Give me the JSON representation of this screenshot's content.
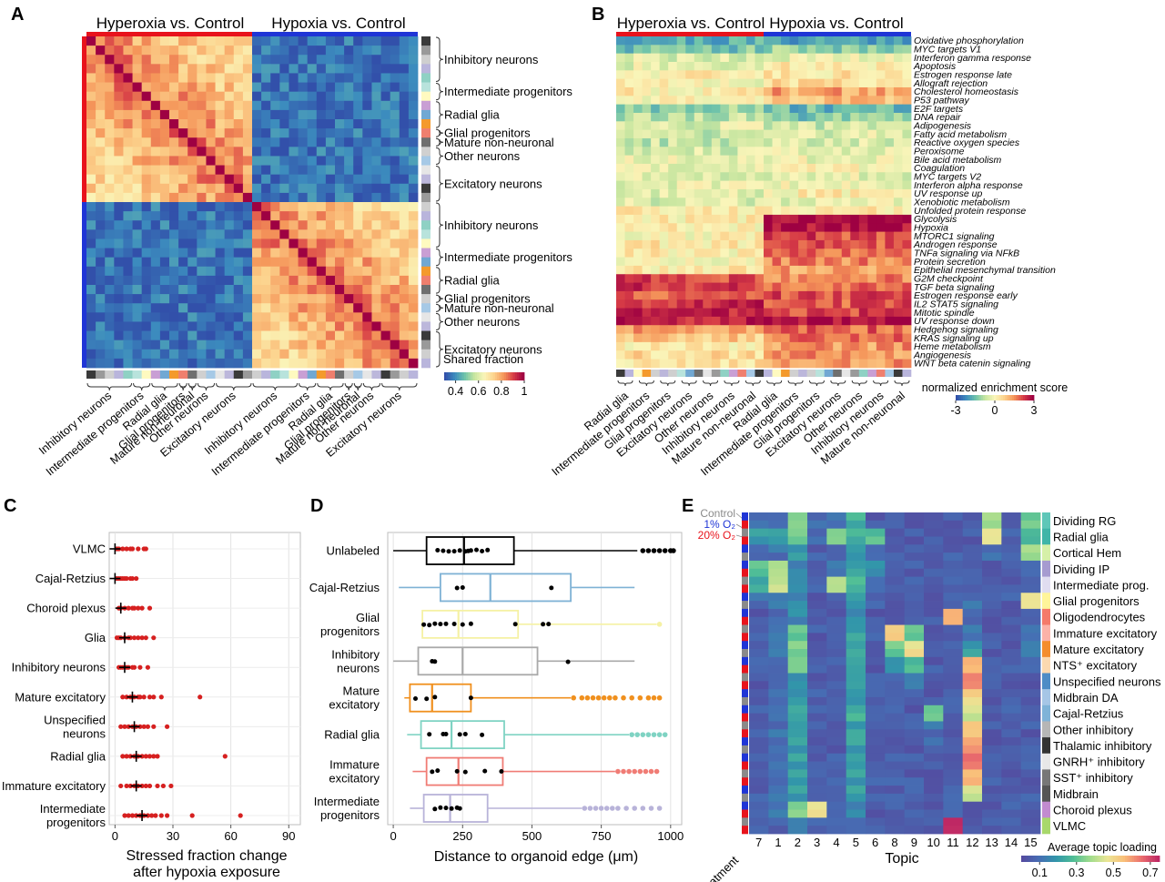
{
  "panels": {
    "A": {
      "letter": "A",
      "group_titles": [
        "Hyperoxia vs. Control",
        "Hypoxia vs. Control"
      ],
      "bracket_labels": [
        "Inhibitory neurons",
        "Intermediate progenitors",
        "Radial glia",
        "Glial progenitors",
        "Mature non-neuronal",
        "Other neurons",
        "Excitatory neurons",
        "Inhibitory neurons",
        "Intermediate progenitors",
        "Radial glia",
        "Glial progenitors",
        "Mature non-neuronal",
        "Other neurons",
        "Excitatory neurons"
      ],
      "bottom_labels": [
        "Inhibitory neurons",
        "Intermediate progenitors",
        "Radial glia",
        "Glial progenitors",
        "Mature non-neuronal",
        "Other neurons",
        "Excitatory neurons",
        "Inhibitory neurons",
        "Intermediate progenitors",
        "Radial glia",
        "Glial progenitors",
        "Mature non-neuronal",
        "Other neurons",
        "Excitatory neurons"
      ],
      "colorbar_title": "Shared fraction",
      "colorbar_ticks": [
        "0.4",
        "0.6",
        "0.8",
        "1"
      ]
    },
    "B": {
      "letter": "B",
      "group_titles": [
        "Hyperoxia vs. Control",
        "Hypoxia vs. Control"
      ],
      "pathways": [
        "Oxidative phosphorylation",
        "MYC targets V1",
        "Interferon gamma response",
        "Apoptosis",
        "Estrogen response late",
        "Allograft rejection",
        "Cholesterol homeostasis",
        "P53 pathway",
        "E2F targets",
        "DNA repair",
        "Adipogenesis",
        "Fatty acid metabolism",
        "Reactive oxygen species",
        "Peroxisome",
        "Bile acid metabolism",
        "Coagulation",
        "MYC targets V2",
        "Interferon alpha response",
        "UV response up",
        "Xenobiotic metabolism",
        "Unfolded protein response",
        "Glycolysis",
        "Hypoxia",
        "MTORC1 signaling",
        "Androgen response",
        "TNFa signaling via NFkB",
        "Protein secretion",
        "Epithelial mesenchymal transition",
        "G2M checkpoint",
        "TGF beta signaling",
        "Estrogen response early",
        "IL2 STAT5 signaling",
        "Mitotic spindle",
        "UV response down",
        "Hedgehog signaling",
        "KRAS signaling up",
        "Heme metabolism",
        "Angiogenesis",
        "WNT beta catenin signaling"
      ],
      "bottom_labels": [
        "Radial glia",
        "Intermediate progenitors",
        "Glial progenitors",
        "Excitatory neurons",
        "Other neurons",
        "Inhibitory neurons",
        "Mature non-neuronal",
        "Radial glia",
        "Intermediate progenitors",
        "Glial progenitors",
        "Excitatory neurons",
        "Other neurons",
        "Inhibitory neurons",
        "Mature non-neuronal"
      ],
      "colorbar_title": "normalized enrichment score",
      "colorbar_ticks": [
        "-3",
        "0",
        "3"
      ]
    },
    "C": {
      "letter": "C",
      "xlabel_line1": "Stressed fraction change",
      "xlabel_line2": "after hypoxia exposure",
      "xticks": [
        "0",
        "30",
        "60",
        "90"
      ]
    },
    "D": {
      "letter": "D",
      "xlabel": "Distance to organoid edge (μm)",
      "xticks": [
        "0",
        "250",
        "500",
        "750",
        "1000"
      ]
    },
    "E": {
      "letter": "E",
      "treatment_legend": [
        "Control",
        "1% O₂",
        "20% O₂"
      ],
      "row_label": "treatment",
      "xlabel": "Topic",
      "topics": [
        "7",
        "1",
        "2",
        "3",
        "4",
        "5",
        "6",
        "8",
        "9",
        "10",
        "11",
        "12",
        "13",
        "14",
        "15"
      ],
      "clusters": [
        "Dividing RG",
        "Radial glia",
        "Cortical Hem",
        "Dividing IP",
        "Intermediate prog.",
        "Glial progenitors",
        "Oligodendrocytes",
        "Immature excitatory",
        "Mature excitatory",
        "NTS⁺ excitatory",
        "Unspecified neurons",
        "Midbrain DA",
        "Cajal-Retzius",
        "Other inhibitory",
        "Thalamic inhibitory",
        "GNRH⁺ inhibitory",
        "SST⁺ inhibitory",
        "Midbrain",
        "Choroid plexus",
        "VLMC"
      ],
      "colorbar_title": "Average topic loading",
      "colorbar_ticks": [
        "0.1",
        "0.3",
        "0.5",
        "0.7"
      ]
    }
  },
  "chart_data": [
    {
      "type": "heatmap",
      "panel": "A",
      "title": "",
      "groups": [
        "Hyperoxia vs. Control",
        "Hypoxia vs. Control"
      ],
      "row_blocks": [
        "Inhibitory neurons",
        "Intermediate progenitors",
        "Radial glia",
        "Glial progenitors",
        "Mature non-neuronal",
        "Other neurons",
        "Excitatory neurons",
        "Inhibitory neurons",
        "Intermediate progenitors",
        "Radial glia",
        "Glial progenitors",
        "Mature non-neuronal",
        "Other neurons",
        "Excitatory neurons"
      ],
      "value_label": "Shared fraction",
      "range": [
        0.3,
        1.0
      ],
      "within_group_mean": 0.72,
      "between_group_mean": 0.35,
      "diagonal": 1.0
    },
    {
      "type": "heatmap",
      "panel": "B",
      "value_label": "normalized enrichment score",
      "range": [
        -3,
        3
      ],
      "rows": [
        "Oxidative phosphorylation",
        "MYC targets V1",
        "Interferon gamma response",
        "Apoptosis",
        "Estrogen response late",
        "Allograft rejection",
        "Cholesterol homeostasis",
        "P53 pathway",
        "E2F targets",
        "DNA repair",
        "Adipogenesis",
        "Fatty acid metabolism",
        "Reactive oxygen species",
        "Peroxisome",
        "Bile acid metabolism",
        "Coagulation",
        "MYC targets V2",
        "Interferon alpha response",
        "UV response up",
        "Xenobiotic metabolism",
        "Unfolded protein response",
        "Glycolysis",
        "Hypoxia",
        "MTORC1 signaling",
        "Androgen response",
        "TNFa signaling via NFkB",
        "Protein secretion",
        "Epithelial mesenchymal transition",
        "G2M checkpoint",
        "TGF beta signaling",
        "Estrogen response early",
        "IL2 STAT5 signaling",
        "Mitotic spindle",
        "UV response down",
        "Hedgehog signaling",
        "KRAS signaling up",
        "Heme metabolism",
        "Angiogenesis",
        "WNT beta catenin signaling"
      ],
      "hyperoxia_mean": [
        -1.8,
        -1.4,
        -0.4,
        -0.3,
        0.2,
        0,
        0.2,
        0,
        -1.2,
        -0.8,
        -0.4,
        -0.6,
        -0.7,
        -0.5,
        -0.2,
        -0.2,
        -0.4,
        -0.3,
        -0.4,
        -0.5,
        0.2,
        0.2,
        0.2,
        0.1,
        0.3,
        0.2,
        0,
        0.2,
        2.2,
        2.3,
        2.0,
        2.4,
        2.6,
        2.6,
        1.4,
        0.8,
        0.3,
        0.5,
        0.4
      ],
      "hypoxia_mean": [
        -1.9,
        -1.2,
        -0.3,
        0.3,
        0.4,
        0.5,
        1.3,
        0.9,
        -1.6,
        -1.4,
        -0.6,
        -0.4,
        -0.4,
        -0.3,
        -0.2,
        0.1,
        -0.3,
        -0.2,
        0.2,
        -0.3,
        0.3,
        2.8,
        2.9,
        2.2,
        2.0,
        1.9,
        1.6,
        1.4,
        1.6,
        2.0,
        2.1,
        2.0,
        2.2,
        2.9,
        1.9,
        1.8,
        1.4,
        1.5,
        1.4
      ]
    },
    {
      "type": "scatter",
      "panel": "C",
      "categories": [
        "VLMC",
        "Cajal-Retzius",
        "Choroid plexus",
        "Glia",
        "Inhibitory neurons",
        "Mature excitatory",
        "Unspecified neurons",
        "Radial glia",
        "Immature excitatory",
        "Intermediate progenitors"
      ],
      "xlabel": "Stressed fraction change after hypoxia exposure",
      "xlim": [
        -3,
        96
      ],
      "medians": [
        0,
        0,
        3,
        5,
        5,
        9,
        10,
        11,
        11,
        14
      ],
      "points": [
        [
          1,
          2,
          4,
          6,
          8,
          9,
          12,
          15,
          16
        ],
        [
          1,
          2,
          3,
          4,
          5,
          6,
          8,
          9,
          11
        ],
        [
          2,
          3,
          5,
          7,
          9,
          10,
          12,
          14,
          18
        ],
        [
          1,
          2,
          3,
          5,
          7,
          8,
          10,
          12,
          14,
          16,
          20
        ],
        [
          2,
          3,
          4,
          6,
          7,
          9,
          10,
          13,
          17
        ],
        [
          4,
          6,
          8,
          10,
          12,
          13,
          15,
          18,
          20,
          24,
          44
        ],
        [
          3,
          5,
          7,
          9,
          11,
          13,
          15,
          17,
          20,
          27
        ],
        [
          4,
          6,
          8,
          10,
          12,
          14,
          16,
          18,
          20,
          22,
          57
        ],
        [
          3,
          6,
          8,
          10,
          12,
          14,
          16,
          18,
          22,
          25,
          29
        ],
        [
          5,
          7,
          9,
          11,
          13,
          15,
          17,
          19,
          21,
          24,
          27,
          40,
          65
        ]
      ]
    },
    {
      "type": "box",
      "panel": "D",
      "categories": [
        "Unlabeled",
        "Cajal-Retzius",
        "Glial progenitors",
        "Inhibitory neurons",
        "Mature excitatory",
        "Radial glia",
        "Immature excitatory",
        "Intermediate progenitors"
      ],
      "xlabel": "Distance to organoid edge (μm)",
      "xlim": [
        -20,
        1040
      ],
      "colors": [
        "#000000",
        "#7fb2d5",
        "#f5f1a4",
        "#a9a9a9",
        "#f0901e",
        "#7fd3c3",
        "#f07c75",
        "#b8b3d9"
      ],
      "whisker_low": [
        0,
        20,
        100,
        0,
        40,
        50,
        70,
        60
      ],
      "q1": [
        120,
        170,
        105,
        90,
        60,
        100,
        120,
        110
      ],
      "median": [
        255,
        350,
        235,
        250,
        140,
        210,
        235,
        205
      ],
      "q3": [
        435,
        640,
        450,
        520,
        280,
        400,
        395,
        340
      ],
      "whisker_high": [
        880,
        870,
        950,
        870,
        640,
        850,
        800,
        680
      ],
      "outliers": [
        [
          900,
          920,
          940,
          960,
          980,
          1000,
          1010
        ],
        [],
        [
          960
        ],
        [],
        [
          650,
          680,
          700,
          720,
          740,
          760,
          780,
          800,
          830,
          860,
          890,
          920,
          940,
          960
        ],
        [
          860,
          880,
          900,
          920,
          940,
          960,
          980
        ],
        [
          810,
          830,
          850,
          870,
          890,
          910,
          930,
          950
        ],
        [
          690,
          710,
          730,
          750,
          770,
          790,
          810,
          840,
          870,
          900,
          930,
          960
        ]
      ],
      "points": [
        [
          160,
          180,
          200,
          220,
          240,
          260,
          270,
          280,
          300,
          320,
          340
        ],
        [
          230,
          250,
          570
        ],
        [
          110,
          130,
          150,
          170,
          190,
          220,
          250,
          280,
          440,
          540,
          560
        ],
        [
          140,
          150,
          630
        ],
        [
          80,
          120,
          150,
          280
        ],
        [
          130,
          180,
          190,
          240,
          260,
          320
        ],
        [
          140,
          160,
          230,
          260,
          330,
          390
        ],
        [
          150,
          170,
          190,
          210,
          230,
          240
        ]
      ]
    },
    {
      "type": "heatmap",
      "panel": "E",
      "value_label": "Average topic loading",
      "range": [
        0.0,
        0.75
      ],
      "topics": [
        "7",
        "1",
        "2",
        "3",
        "4",
        "5",
        "6",
        "8",
        "9",
        "10",
        "11",
        "12",
        "13",
        "14",
        "15"
      ],
      "clusters": [
        "Dividing RG",
        "Radial glia",
        "Cortical Hem",
        "Dividing IP",
        "Intermediate prog.",
        "Glial progenitors",
        "Oligodendrocytes",
        "Immature excitatory",
        "Mature excitatory",
        "NTS⁺ excitatory",
        "Unspecified neurons",
        "Midbrain DA",
        "Cajal-Retzius",
        "Other inhibitory",
        "Thalamic inhibitory",
        "GNRH⁺ inhibitory",
        "SST⁺ inhibitory",
        "Midbrain",
        "Choroid plexus",
        "VLMC"
      ],
      "values": [
        [
          0.1,
          0.1,
          0.35,
          0.1,
          0.1,
          0.25,
          0.05,
          0.05,
          0.05,
          0.05,
          0.05,
          0.05,
          0.4,
          0.05,
          0.3
        ],
        [
          0.2,
          0.2,
          0.3,
          0.1,
          0.35,
          0.25,
          0.3,
          0.05,
          0.05,
          0.05,
          0.05,
          0.05,
          0.45,
          0.05,
          0.25
        ],
        [
          0.1,
          0.1,
          0.2,
          0.05,
          0.1,
          0.2,
          0.1,
          0.05,
          0.05,
          0.05,
          0.05,
          0.05,
          0.1,
          0.05,
          0.4
        ],
        [
          0.3,
          0.4,
          0.15,
          0.05,
          0.1,
          0.2,
          0.15,
          0.05,
          0.05,
          0.05,
          0.05,
          0.05,
          0.05,
          0.05,
          0.1
        ],
        [
          0.25,
          0.45,
          0.2,
          0.1,
          0.4,
          0.25,
          0.1,
          0.05,
          0.05,
          0.05,
          0.05,
          0.05,
          0.05,
          0.05,
          0.05
        ],
        [
          0.1,
          0.1,
          0.15,
          0.05,
          0.05,
          0.2,
          0.05,
          0.05,
          0.05,
          0.05,
          0.05,
          0.1,
          0.05,
          0.05,
          0.45
        ],
        [
          0.05,
          0.1,
          0.15,
          0.05,
          0.05,
          0.15,
          0.05,
          0.05,
          0.05,
          0.05,
          0.6,
          0.1,
          0.05,
          0.05,
          0.05
        ],
        [
          0.05,
          0.1,
          0.3,
          0.05,
          0.05,
          0.2,
          0.05,
          0.5,
          0.3,
          0.05,
          0.05,
          0.1,
          0.05,
          0.05,
          0.1
        ],
        [
          0.05,
          0.1,
          0.35,
          0.05,
          0.05,
          0.2,
          0.05,
          0.3,
          0.5,
          0.05,
          0.05,
          0.2,
          0.05,
          0.05,
          0.1
        ],
        [
          0.05,
          0.1,
          0.3,
          0.05,
          0.05,
          0.2,
          0.05,
          0.15,
          0.25,
          0.05,
          0.05,
          0.55,
          0.05,
          0.05,
          0.1
        ],
        [
          0.05,
          0.1,
          0.2,
          0.05,
          0.05,
          0.2,
          0.05,
          0.05,
          0.1,
          0.05,
          0.05,
          0.65,
          0.05,
          0.05,
          0.05
        ],
        [
          0.05,
          0.1,
          0.2,
          0.05,
          0.05,
          0.2,
          0.05,
          0.05,
          0.05,
          0.05,
          0.05,
          0.5,
          0.05,
          0.05,
          0.05
        ],
        [
          0.05,
          0.1,
          0.2,
          0.05,
          0.05,
          0.25,
          0.05,
          0.05,
          0.05,
          0.3,
          0.05,
          0.45,
          0.05,
          0.05,
          0.05
        ],
        [
          0.05,
          0.1,
          0.2,
          0.05,
          0.05,
          0.2,
          0.05,
          0.05,
          0.05,
          0.1,
          0.05,
          0.55,
          0.05,
          0.05,
          0.05
        ],
        [
          0.05,
          0.1,
          0.2,
          0.05,
          0.05,
          0.2,
          0.05,
          0.05,
          0.05,
          0.1,
          0.05,
          0.6,
          0.05,
          0.05,
          0.05
        ],
        [
          0.05,
          0.1,
          0.2,
          0.05,
          0.05,
          0.2,
          0.05,
          0.05,
          0.05,
          0.05,
          0.05,
          0.65,
          0.05,
          0.05,
          0.05
        ],
        [
          0.05,
          0.1,
          0.2,
          0.05,
          0.05,
          0.2,
          0.05,
          0.05,
          0.05,
          0.05,
          0.05,
          0.55,
          0.05,
          0.05,
          0.05
        ],
        [
          0.05,
          0.1,
          0.2,
          0.05,
          0.05,
          0.2,
          0.05,
          0.05,
          0.05,
          0.05,
          0.05,
          0.45,
          0.05,
          0.05,
          0.05
        ],
        [
          0.05,
          0.1,
          0.35,
          0.45,
          0.05,
          0.15,
          0.05,
          0.05,
          0.05,
          0.05,
          0.05,
          0.05,
          0.05,
          0.05,
          0.05
        ],
        [
          0.05,
          0.05,
          0.1,
          0.05,
          0.05,
          0.1,
          0.05,
          0.05,
          0.05,
          0.05,
          0.75,
          0.05,
          0.05,
          0.05,
          0.05
        ]
      ]
    }
  ],
  "colors": {
    "hyperoxia": "#e8131c",
    "hypoxia": "#1f35d6",
    "control": "#8a8a8a",
    "o2_1pct": "#1f35d6",
    "o2_20pct": "#e8131c",
    "point_red": "#d62020"
  }
}
